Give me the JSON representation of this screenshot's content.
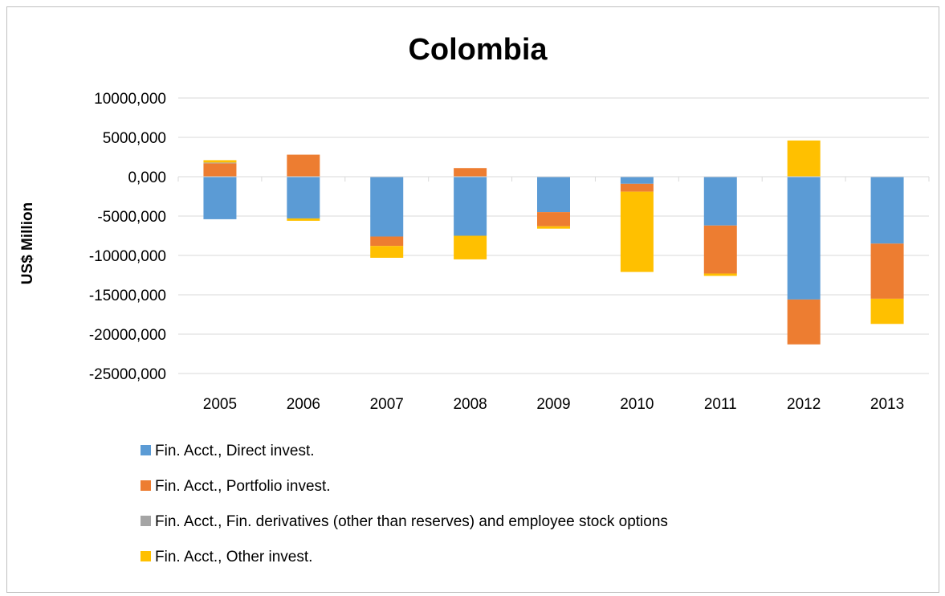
{
  "chart_data": {
    "type": "bar",
    "stacked": true,
    "title": "Colombia",
    "xlabel": "",
    "ylabel": "US$ Million",
    "ylim": [
      -25000,
      10000
    ],
    "ytick_values": [
      10000,
      5000,
      0,
      -5000,
      -10000,
      -15000,
      -20000,
      -25000
    ],
    "ytick_labels": [
      "10000,000",
      "5000,000",
      "0,000",
      "-5000,000",
      "-10000,000",
      "-15000,000",
      "-20000,000",
      "-25000,000"
    ],
    "categories": [
      "2005",
      "2006",
      "2007",
      "2008",
      "2009",
      "2010",
      "2011",
      "2012",
      "2013"
    ],
    "grid": "horizontal",
    "legend": "bottom",
    "series": [
      {
        "name": "Fin. Acct.,  Direct invest.",
        "color": "#5b9bd5",
        "values": [
          -5400,
          -5300,
          -7600,
          -7500,
          -4500,
          -900,
          -6200,
          -15600,
          -8500
        ]
      },
      {
        "name": "Fin. Acct.,  Portfolio invest.",
        "color": "#ed7d31",
        "values": [
          1700,
          2800,
          -1200,
          1100,
          -1800,
          -1000,
          -6100,
          -5700,
          -7000
        ]
      },
      {
        "name": "Fin. Acct.,  Fin. derivatives (other than reserves) and employee stock options",
        "color": "#a5a5a5",
        "values": [
          100,
          0,
          0,
          0,
          0,
          0,
          0,
          0,
          0
        ]
      },
      {
        "name": "Fin. Acct.,  Other invest.",
        "color": "#ffc000",
        "values": [
          300,
          -300,
          -1500,
          -3000,
          -300,
          -10200,
          -300,
          4600,
          -3200
        ]
      }
    ]
  }
}
